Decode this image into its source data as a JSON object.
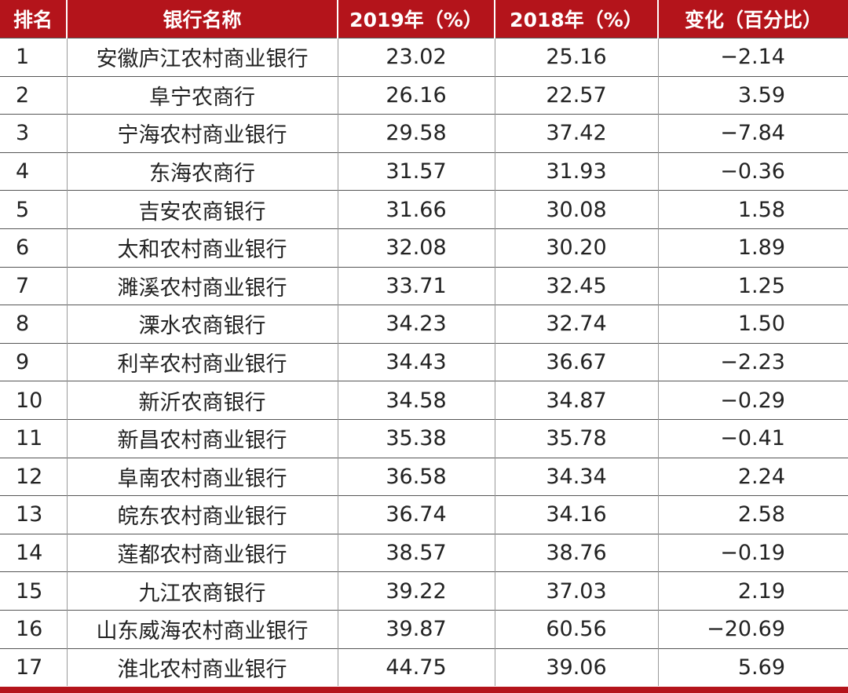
{
  "table": {
    "header": [
      "排名",
      "银行名称",
      "2019年（%）",
      "2018年（%）",
      "变化（百分比）"
    ],
    "rows": [
      [
        "1",
        "安徽庐江农村商业银行",
        "23.02",
        "25.16",
        "−2.14"
      ],
      [
        "2",
        "阜宁农商行",
        "26.16",
        "22.57",
        "3.59"
      ],
      [
        "3",
        "宁海农村商业银行",
        "29.58",
        "37.42",
        "−7.84"
      ],
      [
        "4",
        "东海农商行",
        "31.57",
        "31.93",
        "−0.36"
      ],
      [
        "5",
        "吉安农商银行",
        "31.66",
        "30.08",
        "1.58"
      ],
      [
        "6",
        "太和农村商业银行",
        "32.08",
        "30.20",
        "1.89"
      ],
      [
        "7",
        "濉溪农村商业银行",
        "33.71",
        "32.45",
        "1.25"
      ],
      [
        "8",
        "溧水农商银行",
        "34.23",
        "32.74",
        "1.50"
      ],
      [
        "9",
        "利辛农村商业银行",
        "34.43",
        "36.67",
        "−2.23"
      ],
      [
        "10",
        "新沂农商银行",
        "34.58",
        "34.87",
        "−0.29"
      ],
      [
        "11",
        "新昌农村商业银行",
        "35.38",
        "35.78",
        "−0.41"
      ],
      [
        "12",
        "阜南农村商业银行",
        "36.58",
        "34.34",
        "2.24"
      ],
      [
        "13",
        "皖东农村商业银行",
        "36.74",
        "34.16",
        "2.58"
      ],
      [
        "14",
        "莲都农村商业银行",
        "38.57",
        "38.76",
        "−0.19"
      ],
      [
        "15",
        "九江农商银行",
        "39.22",
        "37.03",
        "2.19"
      ],
      [
        "16",
        "山东威海农村商业银行",
        "39.87",
        "60.56",
        "−20.69"
      ],
      [
        "17",
        "淮北农村商业银行",
        "44.75",
        "39.06",
        "5.69"
      ]
    ]
  }
}
